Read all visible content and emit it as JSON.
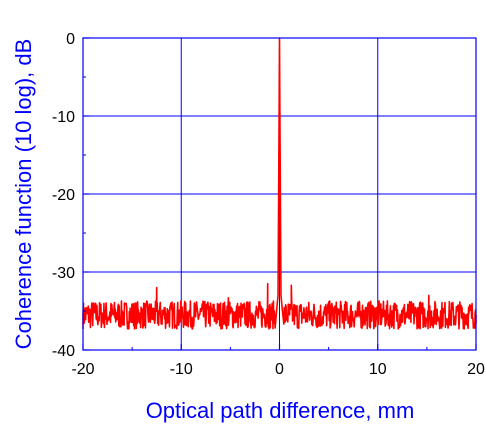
{
  "chart_data": {
    "type": "line",
    "title": "",
    "xlabel": "Optical path difference, mm",
    "ylabel": "Coherence function (10 log), dB",
    "xlim": [
      -20,
      20
    ],
    "ylim": [
      -40,
      0
    ],
    "x_ticks": [
      -20,
      -10,
      0,
      10,
      20
    ],
    "y_ticks": [
      0,
      -10,
      -20,
      -30,
      -40
    ],
    "x_tick_labels": [
      "-20",
      "-10",
      "0",
      "10",
      "20"
    ],
    "y_tick_labels": [
      "0",
      "-10",
      "-20",
      "-30",
      "-40"
    ],
    "grid": true,
    "noise_floor_db": -35.5,
    "noise_band_db": [
      -37.5,
      -33.5
    ],
    "series": [
      {
        "x": [
          -20,
          -12.6,
          -12.5,
          -12.4,
          -5.3,
          -5.2,
          -5.1,
          -1.3,
          -1.2,
          -1.1,
          -0.3,
          -0.15,
          -0.05,
          0,
          0.05,
          0.15,
          0.3,
          1.1,
          1.2,
          1.3,
          15.1,
          15.2,
          15.3,
          20
        ],
        "y": [
          -35.5,
          -35.0,
          -32.0,
          -35.0,
          -35.0,
          -33.3,
          -35.0,
          -34.8,
          -31.5,
          -34.8,
          -35.0,
          -33.0,
          -12.0,
          0,
          -12.0,
          -33.0,
          -35.0,
          -34.8,
          -31.7,
          -34.8,
          -35.0,
          -33.0,
          -35.0,
          -35.5
        ],
        "color": "#ff0000"
      }
    ]
  },
  "colors": {
    "axis": "#0000ff",
    "grid": "#0000ff",
    "line": "#ff0000",
    "ylabel": "#0000ff",
    "xlabel": "#0000ff"
  }
}
